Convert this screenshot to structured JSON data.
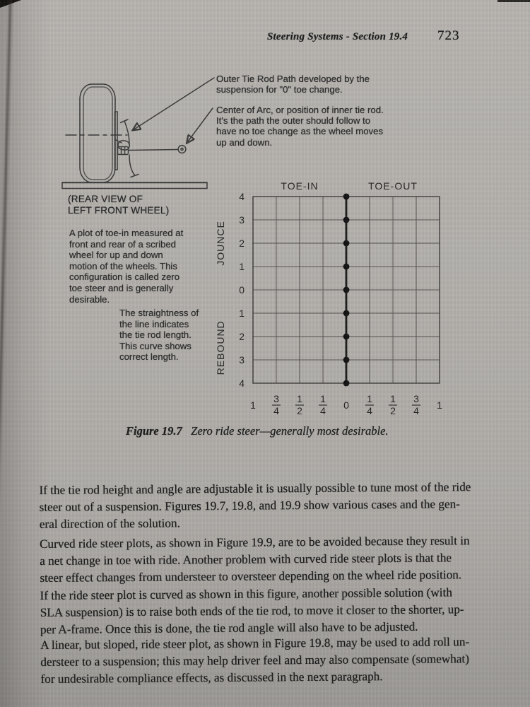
{
  "header": {
    "title": "Steering Systems - Section 19.4",
    "page_number": "723"
  },
  "figure": {
    "annotation_outer_lines": [
      "Outer Tie Rod Path developed by the",
      "suspension for \"0\" toe change."
    ],
    "annotation_center_lines": [
      "Center of Arc, or position of inner tie rod.",
      "It's the path the outer should follow to",
      "have no toe change as the wheel moves",
      "up and down."
    ],
    "rear_view_label_lines": [
      "(REAR VIEW OF",
      "LEFT FRONT WHEEL)"
    ],
    "description_lines": [
      "A plot of toe-in measured at",
      "front and rear of a scribed",
      "wheel for up and down",
      "motion of the wheels. This",
      "configuration is called zero",
      "toe steer and is generally",
      "desirable."
    ],
    "straightness_lines": [
      "The straightness of",
      "the line indicates",
      "the tie rod length.",
      "This curve shows",
      "correct length."
    ],
    "caption_label": "Figure 19.7",
    "caption_text": "Zero ride steer—generally most desirable."
  },
  "chart_data": {
    "type": "line",
    "title_left": "TOE-IN",
    "title_right": "TOE-OUT",
    "ylabel_top": "JOUNCE",
    "ylabel_bottom": "REBOUND",
    "x_tick_labels": [
      "1",
      "3/4",
      "1/2",
      "1/4",
      "0",
      "1/4",
      "1/2",
      "3/4",
      "1"
    ],
    "y_tick_labels": [
      "4",
      "3",
      "2",
      "1",
      "0",
      "1",
      "2",
      "3",
      "4"
    ],
    "x_range": [
      -1,
      1
    ],
    "y_range": [
      -4,
      4
    ],
    "grid": true,
    "marker": "filled-dot",
    "series": [
      {
        "name": "zero ride steer line",
        "points": [
          [
            0,
            4
          ],
          [
            0,
            3
          ],
          [
            0,
            2
          ],
          [
            0,
            1
          ],
          [
            0,
            0
          ],
          [
            0,
            -1
          ],
          [
            0,
            -2
          ],
          [
            0,
            -3
          ],
          [
            0,
            -4
          ]
        ]
      }
    ]
  },
  "paragraphs": [
    {
      "lines": [
        "If the tie rod height and angle are adjustable it is usually possible to tune most of the ride",
        "steer out of a suspension.  Figures 19.7, 19.8, and 19.9 show various cases and the gen-",
        "eral direction of the solution."
      ]
    },
    {
      "lines": [
        "Curved ride steer plots, as shown in Figure 19.9, are to be avoided because they result in",
        "a net change in toe with ride.  Another problem with curved ride steer plots is that the",
        "steer effect changes from understeer to oversteer depending on the wheel ride position.",
        "If the ride steer plot is curved as shown in this figure, another possible solution (with",
        "SLA suspension) is to raise both ends of the tie rod, to move it closer to the shorter, up-",
        "per A-frame.  Once this is done, the tie rod angle will also have to be adjusted."
      ]
    },
    {
      "lines": [
        "A linear, but sloped, ride steer plot, as shown in Figure 19.8, may be used to add roll un-",
        "dersteer to a suspension; this may help driver feel and may also compensate (somewhat)",
        "for undesirable compliance effects, as discussed in the next paragraph."
      ]
    }
  ]
}
